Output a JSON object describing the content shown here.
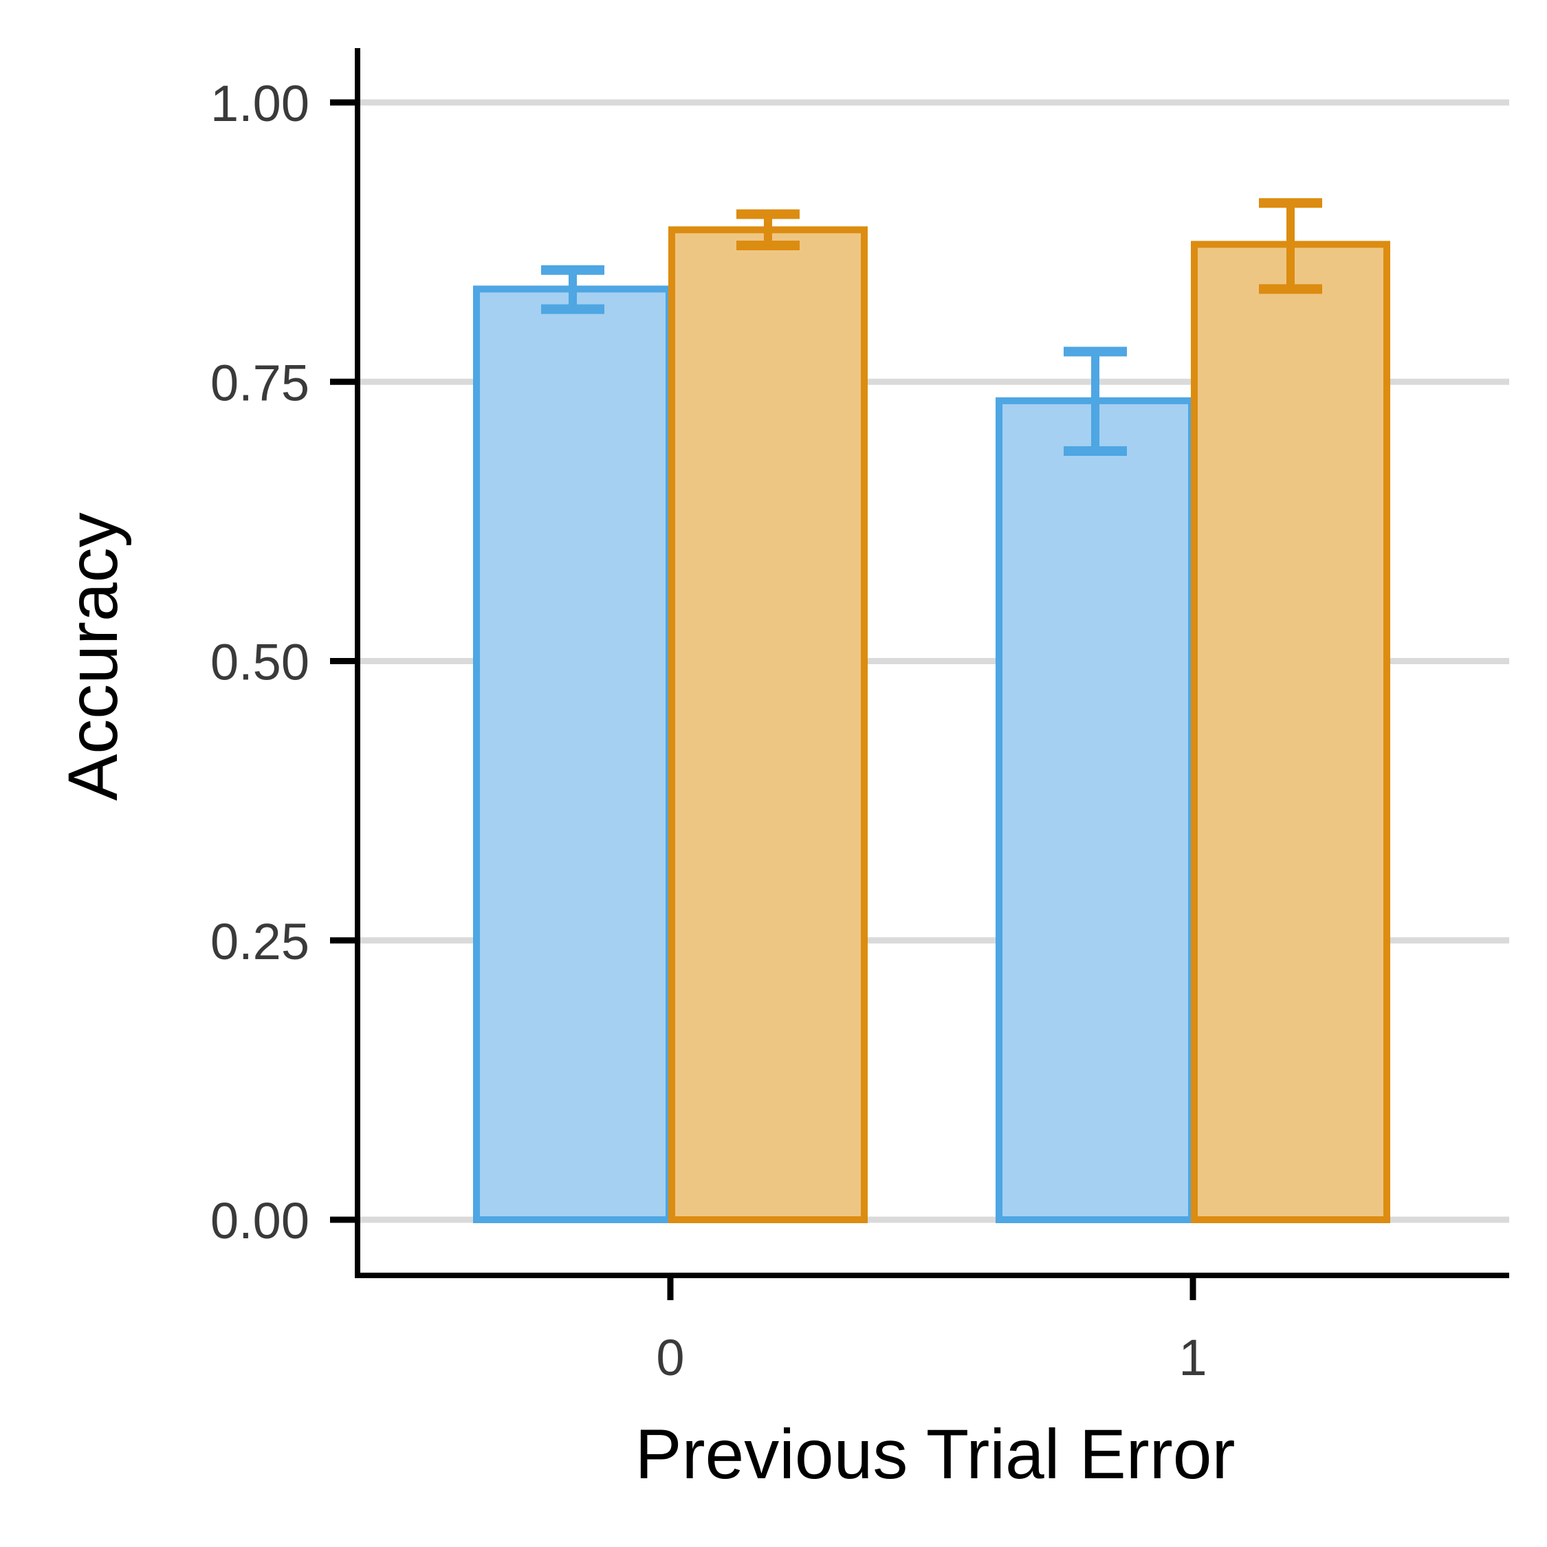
{
  "chart_data": {
    "type": "bar",
    "xlabel": "Previous Trial Error",
    "ylabel": "Accuracy",
    "categories": [
      "0",
      "1"
    ],
    "ylim": [
      -0.05,
      1.05
    ],
    "yticks": [
      0.0,
      0.25,
      0.5,
      0.75,
      1.0
    ],
    "ytick_labels": [
      "0.00",
      "0.25",
      "0.50",
      "0.75",
      "1.00"
    ],
    "grid": "horizontal major",
    "legend": "none",
    "series": [
      {
        "color": "#4ea6e3",
        "fill": "#a5d0f1",
        "values": [
          0.833,
          0.733
        ],
        "error_low": [
          0.815,
          0.688
        ],
        "error_high": [
          0.85,
          0.777
        ]
      },
      {
        "color": "#dc8c10",
        "fill": "#eec683",
        "values": [
          0.886,
          0.873
        ],
        "error_low": [
          0.872,
          0.833
        ],
        "error_high": [
          0.9,
          0.91
        ]
      }
    ]
  }
}
